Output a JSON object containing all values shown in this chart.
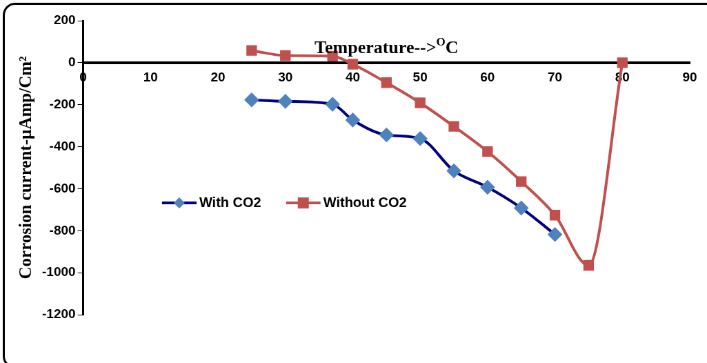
{
  "chart_data": {
    "type": "line",
    "xlabel": "Temperature-->$^{O}$C",
    "ylabel": "Corrosion current-µAmp/Cm²",
    "xlim": [
      0,
      90
    ],
    "xticks": [
      0,
      10,
      20,
      30,
      40,
      50,
      60,
      70,
      80,
      90
    ],
    "ylim": [
      -1200,
      200
    ],
    "yticks": [
      -1200,
      -1000,
      -800,
      -600,
      -400,
      -200,
      0,
      200
    ],
    "grid": false,
    "legend": "left",
    "line_style": "solid",
    "series": [
      {
        "name": "With CO2",
        "color": "#000080",
        "colors": [
          "#4f81bd",
          "#4f81bd",
          "#4f81bd",
          "#4f81bd",
          "#4f81bd",
          "#4f81bd",
          "#4f81bd",
          "#4f81bd",
          "#4f81bd",
          "#4f81bd"
        ],
        "marker": "diamond",
        "x": [
          25,
          30,
          37,
          40,
          45,
          50,
          55,
          60,
          65,
          70
        ],
        "values": [
          -177,
          -184,
          -198,
          -273,
          -344,
          -361,
          -515,
          -593,
          -692,
          -818
        ]
      },
      {
        "name": "Without CO2",
        "color": "#c0504d",
        "marker": "square",
        "x": [
          25,
          30,
          37,
          40,
          45,
          50,
          55,
          60,
          65,
          70,
          75,
          80
        ],
        "values": [
          58,
          34,
          31,
          -7,
          -95,
          -191,
          -303,
          -423,
          -566,
          -726,
          -965,
          0
        ]
      }
    ]
  }
}
